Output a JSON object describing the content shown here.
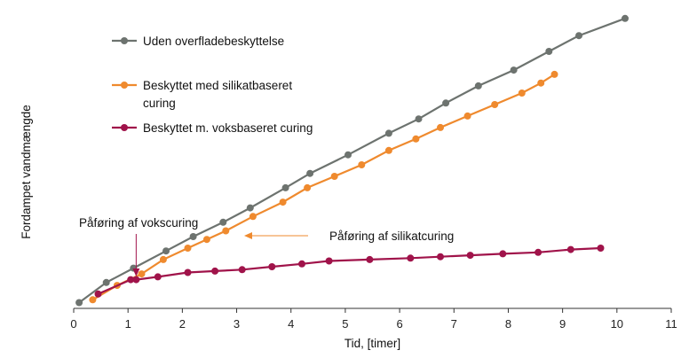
{
  "chart_data": {
    "type": "line",
    "title": "",
    "xlabel": "Tid, [timer]",
    "ylabel": "Fordampet vandmængde",
    "xlim": [
      0,
      11
    ],
    "xticks": [
      0,
      1,
      2,
      3,
      4,
      5,
      6,
      7,
      8,
      9,
      10,
      11
    ],
    "ylim": [
      0,
      100
    ],
    "yticks_shown": false,
    "grid": false,
    "legend_position": "top-left",
    "series": [
      {
        "name": "Uden overfladebeskyttelse",
        "color": "#6d736f",
        "x": [
          0.1,
          0.6,
          1.1,
          1.7,
          2.2,
          2.75,
          3.25,
          3.9,
          4.35,
          5.05,
          5.8,
          6.35,
          6.85,
          7.45,
          8.1,
          8.75,
          9.3,
          10.15
        ],
        "y": [
          2,
          9,
          14,
          20,
          25,
          30,
          35,
          42,
          47,
          53.5,
          61,
          66,
          71.5,
          77.5,
          83,
          89.5,
          95,
          101
        ]
      },
      {
        "name": "Beskyttet med silikatbaseret curing",
        "color": "#ef8a2e",
        "x": [
          0.35,
          0.8,
          1.25,
          1.65,
          2.1,
          2.45,
          2.8,
          3.3,
          3.85,
          4.3,
          4.8,
          5.3,
          5.8,
          6.3,
          6.75,
          7.25,
          7.75,
          8.25,
          8.6,
          8.85
        ],
        "y": [
          3,
          8,
          12,
          17,
          21,
          24,
          27,
          32,
          37,
          42,
          46,
          50,
          55,
          59,
          63,
          67,
          71,
          75,
          78.5,
          81.5
        ]
      },
      {
        "name": "Beskyttet m. voksbaseret curing",
        "color": "#a0134a",
        "x": [
          0.45,
          1.05,
          1.15,
          1.55,
          2.1,
          2.6,
          3.1,
          3.65,
          4.2,
          4.7,
          5.45,
          6.2,
          6.75,
          7.3,
          7.9,
          8.55,
          9.15,
          9.7
        ],
        "y": [
          5,
          10,
          10,
          11,
          12.5,
          13,
          13.5,
          14.5,
          15.5,
          16.5,
          17,
          17.5,
          18,
          18.5,
          19,
          19.5,
          20.5,
          21
        ]
      }
    ],
    "annotations": [
      {
        "text": "Påføring af vokscuring",
        "x": 1.15,
        "y": 11,
        "color": "#a0134a"
      },
      {
        "text": "Påføring af silikatcuring",
        "x": 3.2,
        "y": 30,
        "color": "#ef8a2e"
      }
    ]
  }
}
